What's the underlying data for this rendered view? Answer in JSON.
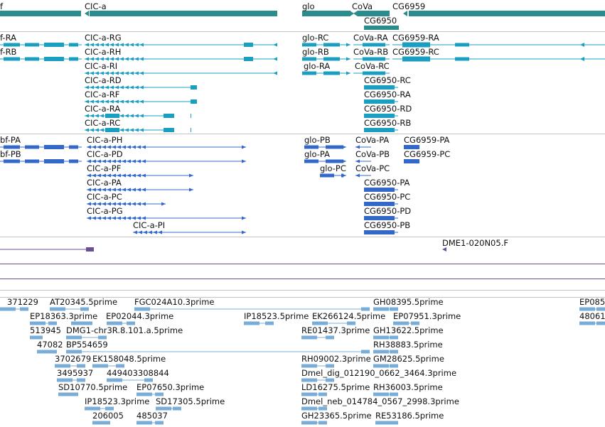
{
  "colors": {
    "gene": "#2a8c8c",
    "transcript_a": "#1a9fc0",
    "transcript_b": "#3468c8",
    "clone": "#6a4e96",
    "est": "#7aacd8",
    "separator": "#c4c4c4"
  },
  "genes": [
    "f",
    "CIC-a",
    "glo",
    "CoVa",
    "CG6959",
    "CG6950"
  ],
  "transcripts_a": [
    "f-RA",
    "f-RB",
    "CIC-a-RG",
    "CIC-a-RH",
    "CIC-a-RI",
    "CIC-a-RD",
    "CIC-a-RF",
    "CIC-a-RA",
    "CIC-a-RC",
    "glo-RC",
    "glo-RB",
    "glo-RA",
    "CoVa-RA",
    "CoVa-RB",
    "CoVa-RC",
    "CG6959-RA",
    "CG6959-RC",
    "CG6950-RC",
    "CG6950-RA",
    "CG6950-RD",
    "CG6950-RB"
  ],
  "transcripts_b": [
    "bf-PA",
    "bf-PB",
    "CIC-a-PH",
    "CIC-a-PD",
    "CIC-a-PF",
    "CIC-a-PA",
    "CIC-a-PC",
    "CIC-a-PG",
    "CIC-a-PI",
    "glo-PB",
    "glo-PA",
    "glo-PC",
    "CoVa-PA",
    "CoVa-PB",
    "CoVa-PC",
    "CG6959-PA",
    "CG6959-PC",
    "CG6950-PA",
    "CG6950-PC",
    "CG6950-PD",
    "CG6950-PB"
  ],
  "clones": [
    "DME1-020N05.F"
  ],
  "ests": [
    "371229",
    "AT20345.5prime",
    "FGC024A10.3prime",
    "GH08395.5prime",
    "EP085",
    "EP18363.3prime",
    "EP02044.3prime",
    "IP18523.5prime",
    "EK266124.5prime",
    "EP07951.3prime",
    "48061",
    "513945",
    "DMG1-chr3R.8.101.a.5prime",
    "RE01437.3prime",
    "GH13622.5prime",
    "47082",
    "BP554659",
    "RH38883.5prime",
    "3702679",
    "EK158048.5prime",
    "RH09002.3prime",
    "GM28625.5prime",
    "3495937",
    "449403308844",
    "Dmel_dig_012190_0662_3464.3prime",
    "SD10770.5prime",
    "EP07650.3prime",
    "LD16275.5prime",
    "RH36003.5prime",
    "IP18523.3prime",
    "SD17305.5prime",
    "Dmel_neb_014784_0567_2998.3prime",
    "206005",
    "485037",
    "GH23365.5prime",
    "RE53186.5prime"
  ]
}
